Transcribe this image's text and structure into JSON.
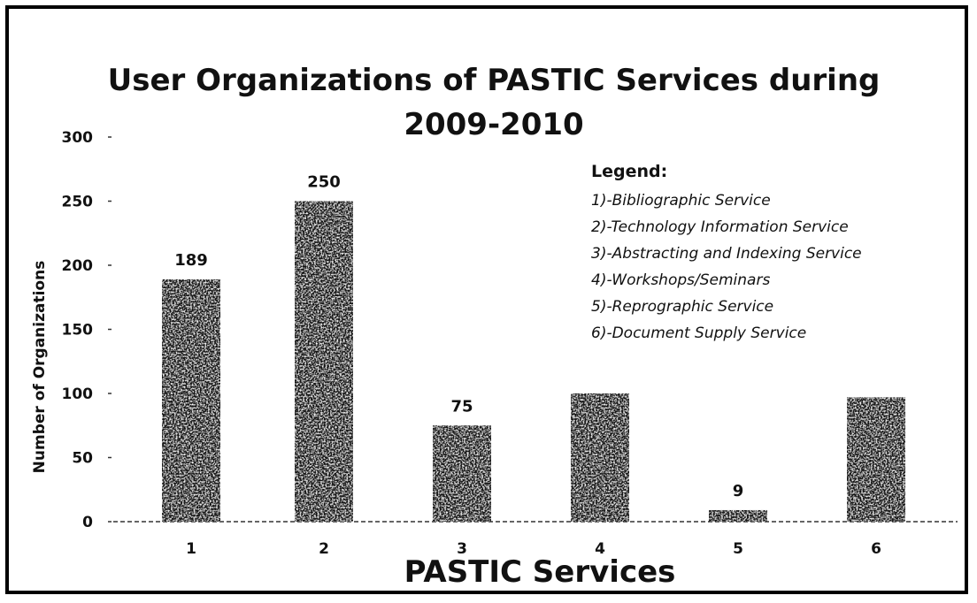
{
  "chart_data": {
    "type": "bar",
    "title_line1": "User Organizations of PASTIC Services during",
    "title_line2": "2009-2010",
    "xlabel": "PASTIC Services",
    "ylabel": "Number of Organizations",
    "categories": [
      "1",
      "2",
      "3",
      "4",
      "5",
      "6"
    ],
    "values": [
      189,
      250,
      75,
      100,
      9,
      97
    ],
    "data_labels": [
      "189",
      "250",
      "75",
      "",
      "9",
      ""
    ],
    "ylim": [
      0,
      300
    ],
    "yticks": [
      "0",
      "50",
      "100",
      "150",
      "200",
      "250",
      "300"
    ],
    "grid": false,
    "bar_color": "#141414",
    "legend": {
      "title": "Legend:",
      "placement": "top-right",
      "items": [
        "1)-Bibliographic Service",
        "2)-Technology Information Service",
        "3)-Abstracting and Indexing Service",
        "4)-Workshops/Seminars",
        "5)-Reprographic Service",
        "6)-Document Supply Service"
      ]
    }
  }
}
